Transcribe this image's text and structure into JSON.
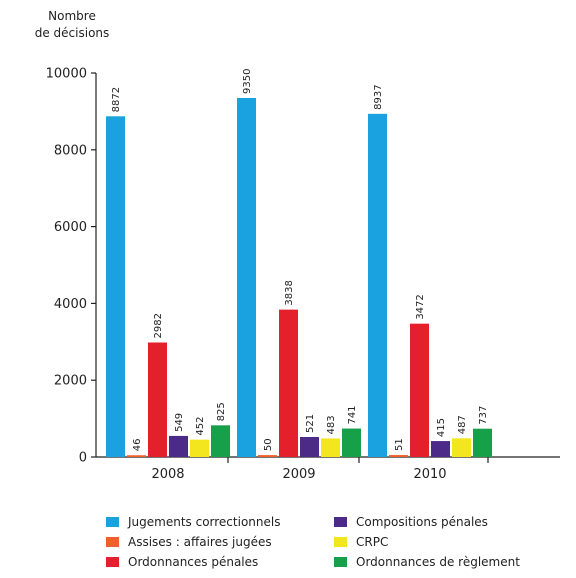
{
  "chart_data": {
    "type": "bar",
    "ylabel": [
      "Nombre",
      "de décisions"
    ],
    "xlabel": "",
    "categories": [
      "2008",
      "2009",
      "2010"
    ],
    "ylim": [
      0,
      10000
    ],
    "yticks": [
      "0",
      "2000",
      "4000",
      "6000",
      "8000",
      "10000"
    ],
    "grid": false,
    "legend_position": "bottom",
    "series": [
      {
        "name": "Jugements correctionnels",
        "color": "#1aa2e0",
        "values": [
          8872,
          9350,
          8937
        ]
      },
      {
        "name": "Assises : affaires jugées",
        "color": "#f2602a",
        "values": [
          46,
          50,
          51
        ]
      },
      {
        "name": "Ordonnances pénales",
        "color": "#e3202c",
        "values": [
          2982,
          3838,
          3472
        ]
      },
      {
        "name": "Compositions pénales",
        "color": "#4b2a88",
        "values": [
          549,
          521,
          415
        ]
      },
      {
        "name": "CRPC",
        "color": "#f3e61e",
        "values": [
          452,
          483,
          487
        ]
      },
      {
        "name": "Ordonnances de règlement",
        "color": "#16a04a",
        "values": [
          825,
          741,
          737
        ]
      }
    ]
  }
}
